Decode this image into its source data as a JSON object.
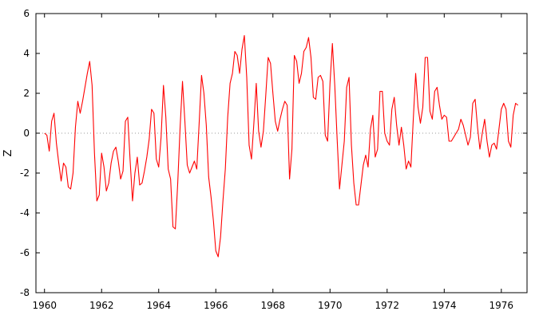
{
  "chart_data": {
    "type": "line",
    "title": "",
    "xlabel": "",
    "ylabel": "Z",
    "xlim": [
      1959.7,
      1976.9
    ],
    "ylim": [
      -8,
      6
    ],
    "x_ticks": [
      1960,
      1962,
      1964,
      1966,
      1968,
      1970,
      1972,
      1974,
      1976
    ],
    "x_tick_labels": [
      "1960",
      "1962",
      "1964",
      "1966",
      "1968",
      "1970",
      "1972",
      "1974",
      "1976"
    ],
    "y_ticks": [
      -8,
      -6,
      -4,
      -2,
      0,
      2,
      4,
      6
    ],
    "y_tick_labels": [
      "-8",
      "-6",
      "-4",
      "-2",
      "0",
      "2",
      "4",
      "6"
    ],
    "grid": false,
    "zero_line": "dotted",
    "line_color": "#ff0000",
    "series": [
      {
        "x_start": 1960.0,
        "x_step": 0.08333,
        "values": [
          0.0,
          -0.1,
          -0.9,
          0.6,
          1.0,
          -0.5,
          -1.5,
          -2.4,
          -1.5,
          -1.7,
          -2.7,
          -2.8,
          -2.0,
          0.3,
          1.6,
          1.0,
          1.6,
          2.3,
          3.0,
          3.6,
          2.4,
          -1.0,
          -3.4,
          -3.1,
          -1.0,
          -1.7,
          -2.9,
          -2.5,
          -1.5,
          -0.9,
          -0.7,
          -1.4,
          -2.3,
          -1.9,
          0.6,
          0.8,
          -1.4,
          -3.4,
          -2.0,
          -1.2,
          -2.6,
          -2.5,
          -1.9,
          -1.2,
          -0.3,
          1.2,
          1.0,
          -1.3,
          -1.7,
          -0.2,
          2.4,
          0.8,
          -1.8,
          -2.3,
          -4.7,
          -4.8,
          -2.5,
          0.3,
          2.6,
          0.6,
          -1.6,
          -2.0,
          -1.7,
          -1.4,
          -1.8,
          0.5,
          2.9,
          2.0,
          0.4,
          -2.2,
          -3.2,
          -4.4,
          -5.9,
          -6.2,
          -5.2,
          -3.4,
          -1.8,
          0.8,
          2.5,
          3.0,
          4.1,
          3.9,
          3.0,
          4.2,
          4.9,
          2.8,
          -0.6,
          -1.3,
          0.5,
          2.5,
          0.1,
          -0.7,
          0.1,
          1.9,
          3.8,
          3.5,
          2.0,
          0.6,
          0.1,
          0.7,
          1.2,
          1.6,
          1.4,
          -2.3,
          -0.8,
          3.9,
          3.6,
          2.5,
          3.0,
          4.1,
          4.3,
          4.8,
          3.8,
          1.8,
          1.7,
          2.8,
          2.9,
          2.6,
          -0.1,
          -0.4,
          2.5,
          4.5,
          2.4,
          -0.3,
          -2.8,
          -1.6,
          -0.4,
          2.3,
          2.8,
          -0.6,
          -2.5,
          -3.6,
          -3.6,
          -2.6,
          -1.6,
          -1.1,
          -1.7,
          0.2,
          0.9,
          -1.2,
          -0.8,
          2.1,
          2.1,
          0.0,
          -0.4,
          -0.6,
          1.2,
          1.8,
          0.4,
          -0.6,
          0.3,
          -0.6,
          -1.8,
          -1.4,
          -1.7,
          0.7,
          3.0,
          1.3,
          0.5,
          1.3,
          3.8,
          3.8,
          1.1,
          0.7,
          2.1,
          2.3,
          1.4,
          0.7,
          0.9,
          0.8,
          -0.4,
          -0.4,
          -0.2,
          0.0,
          0.2,
          0.7,
          0.4,
          -0.1,
          -0.6,
          -0.2,
          1.5,
          1.7,
          0.3,
          -0.8,
          0.0,
          0.7,
          -0.4,
          -1.2,
          -0.6,
          -0.5,
          -0.8,
          0.2,
          1.2,
          1.5,
          1.2,
          -0.4,
          -0.7,
          0.9,
          1.5,
          1.4
        ]
      }
    ]
  }
}
